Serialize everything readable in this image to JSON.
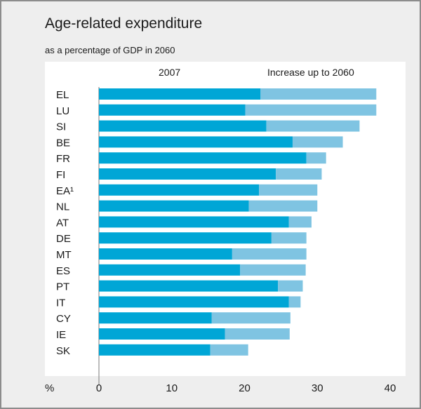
{
  "title": "Age-related expenditure",
  "subtitle": "as a percentage of GDP in 2060",
  "legend": {
    "series_2007": "2007",
    "series_increase": "Increase up to 2060"
  },
  "colors": {
    "base": "#00a6d6",
    "increase": "#7fc4e2",
    "background": "#eeeeee",
    "plot_background": "#ffffff"
  },
  "chart_data": {
    "type": "bar",
    "orientation": "horizontal",
    "stacked": true,
    "categories": [
      "EL",
      "LU",
      "SI",
      "BE",
      "FR",
      "FI",
      "EA¹",
      "NL",
      "AT",
      "DE",
      "MT",
      "ES",
      "PT",
      "IT",
      "CY",
      "IE",
      "SK"
    ],
    "series": [
      {
        "name": "2007",
        "values": [
          22.2,
          20.1,
          23.0,
          26.6,
          28.5,
          24.3,
          22.0,
          20.6,
          26.1,
          23.7,
          18.3,
          19.4,
          24.6,
          26.1,
          15.5,
          17.3,
          15.3
        ]
      },
      {
        "name": "Increase up to 2060",
        "values": [
          15.9,
          18.0,
          12.8,
          6.9,
          2.7,
          6.3,
          8.0,
          9.4,
          3.1,
          4.8,
          10.2,
          9.0,
          3.4,
          1.6,
          10.8,
          8.9,
          5.2
        ]
      }
    ],
    "xlabel": "%",
    "xlim": [
      0,
      40
    ],
    "xticks": [
      0,
      10,
      20,
      30,
      40
    ],
    "grid": false
  }
}
